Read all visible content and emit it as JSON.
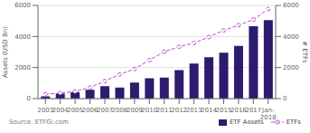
{
  "chart_data": {
    "type": "bar",
    "categories": [
      "2003",
      "2004",
      "2005",
      "2006",
      "2007",
      "2008",
      "2009",
      "2010",
      "2011",
      "2012",
      "2013",
      "2014",
      "2015",
      "2016",
      "2017",
      "Jan-\n2018"
    ],
    "series": [
      {
        "name": "ETF Assets",
        "type": "bar",
        "color": "#2d1b6e",
        "values": [
          151,
          320,
          412,
          565,
          797,
          711,
          1036,
          1311,
          1350,
          1834,
          2252,
          2660,
          2950,
          3389,
          4660,
          5050
        ]
      },
      {
        "name": "ETFs",
        "type": "line",
        "axis": "y2",
        "color": "#bb44cc",
        "line_style": "dashed",
        "marker": "circle",
        "values": [
          276,
          357,
          455,
          714,
          1132,
          1558,
          1906,
          2474,
          3017,
          3337,
          3582,
          3962,
          4395,
          4731,
          5088,
          5765
        ]
      }
    ],
    "ylabel": "Assets (USD Bn)",
    "y2label": "# ETFs",
    "ylim": [
      0,
      6000
    ],
    "yticks": [
      0,
      2000,
      4000,
      6000
    ],
    "y2lim": [
      0,
      6000
    ],
    "y2ticks": [
      0,
      2000,
      4000,
      6000
    ],
    "grid": true,
    "legend": "lower right",
    "annotations": [
      "Source: ETFGi.com"
    ]
  }
}
